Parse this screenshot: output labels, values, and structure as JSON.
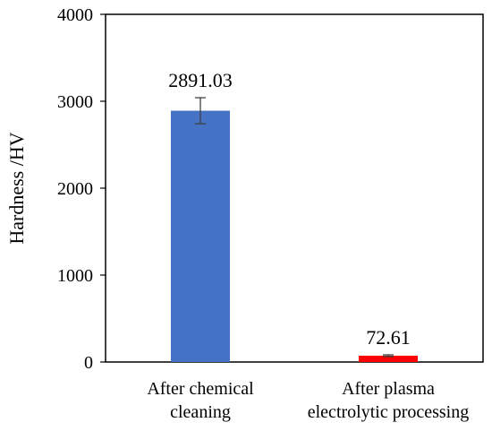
{
  "chart_data": {
    "type": "bar",
    "title": "",
    "xlabel": "",
    "ylabel": "Hardness /HV",
    "ylim": [
      0,
      4000
    ],
    "yticks": [
      0,
      1000,
      2000,
      3000,
      4000
    ],
    "grid": false,
    "legend": "none",
    "categories": [
      [
        "After chemical",
        "cleaning"
      ],
      [
        "After plasma",
        "electrolytic processing"
      ]
    ],
    "values": [
      2891.03,
      72.61
    ],
    "errors": [
      150,
      10
    ],
    "data_labels": [
      "2891.03",
      "72.61"
    ],
    "colors": [
      "#4472C4",
      "#FF0000"
    ]
  }
}
